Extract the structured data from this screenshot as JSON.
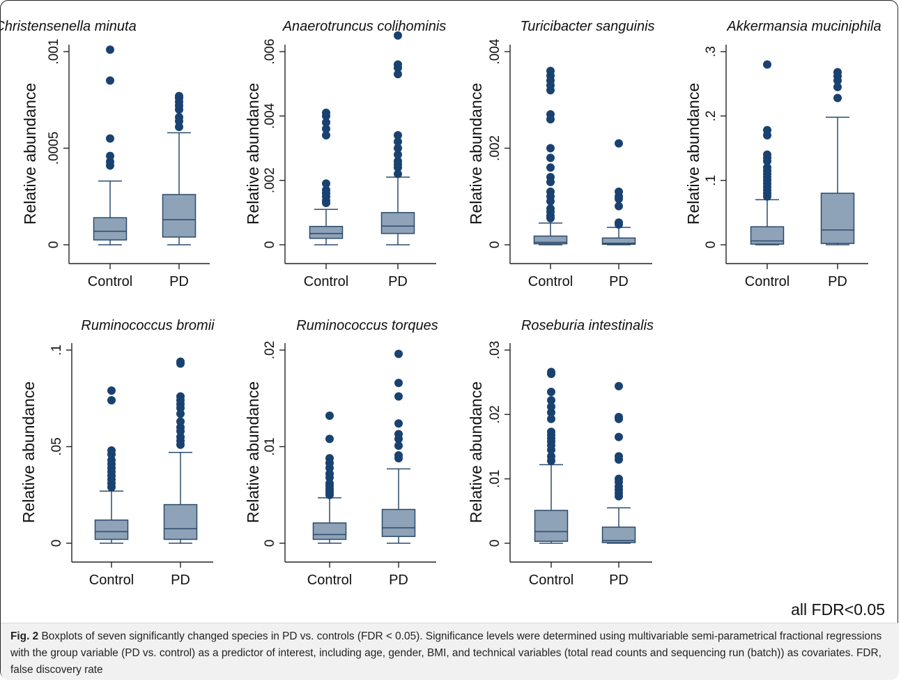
{
  "figure": {
    "note": "all FDR<0.05",
    "caption_label": "Fig. 2",
    "caption_text": " Boxplots of seven significantly changed species in PD vs. controls (FDR < 0.05). Significance levels were determined using multivariable semi-parametrical fractional regressions with the group variable (PD vs. control) as a predictor of interest, including age, gender, BMI, and technical variables (total read counts and sequencing run (batch)) as covariates. FDR, false discovery rate"
  },
  "colors": {
    "box_fill": "#8ea2b8",
    "box_stroke": "#2c4a6b",
    "outlier": "#1a4270",
    "axis": "#222222"
  },
  "chart_data": [
    {
      "type": "box",
      "title": "Christensenella minuta",
      "ylabel": "Relative abundance",
      "ylim": [
        0,
        0.001
      ],
      "yticks": [
        0,
        0.0005,
        0.001
      ],
      "ytick_labels": [
        "0",
        ".0005",
        ".001"
      ],
      "categories": [
        "Control",
        "PD"
      ],
      "boxes": [
        {
          "min": 0,
          "q1": 2.5e-05,
          "median": 7e-05,
          "q3": 0.00014,
          "max": 0.00033,
          "outliers": [
            0.00041,
            0.00043,
            0.00046,
            0.00055,
            0.00085,
            0.00101
          ]
        },
        {
          "min": 0,
          "q1": 4e-05,
          "median": 0.00013,
          "q3": 0.00026,
          "max": 0.00058,
          "outliers": [
            0.00061,
            0.00064,
            0.00066,
            0.0007,
            0.00072,
            0.00074,
            0.00076,
            0.00077
          ]
        }
      ]
    },
    {
      "type": "box",
      "title": "Anaerotruncus colihominis",
      "ylabel": "Relative abundance",
      "ylim": [
        0,
        0.0065
      ],
      "yticks": [
        0,
        0.002,
        0.004,
        0.006
      ],
      "ytick_labels": [
        "0",
        ".002",
        ".004",
        ".006"
      ],
      "categories": [
        "Control",
        "PD"
      ],
      "boxes": [
        {
          "min": 0,
          "q1": 0.0002,
          "median": 0.00035,
          "q3": 0.00057,
          "max": 0.0011,
          "outliers": [
            0.0013,
            0.00137,
            0.0015,
            0.0016,
            0.0017,
            0.0019,
            0.0034,
            0.0036,
            0.0038,
            0.004,
            0.0041
          ]
        },
        {
          "min": 0,
          "q1": 0.00035,
          "median": 0.00058,
          "q3": 0.001,
          "max": 0.0021,
          "outliers": [
            0.0022,
            0.0024,
            0.0025,
            0.0026,
            0.0028,
            0.003,
            0.0032,
            0.0034,
            0.0053,
            0.0055,
            0.0056,
            0.0065
          ]
        }
      ]
    },
    {
      "type": "box",
      "title": "Turicibacter sanguinis",
      "ylabel": "Relative abundance",
      "ylim": [
        0,
        0.004
      ],
      "yticks": [
        0,
        0.002,
        0.004
      ],
      "ytick_labels": [
        "0",
        ".002",
        ".004"
      ],
      "categories": [
        "Control",
        "PD"
      ],
      "boxes": [
        {
          "min": 0,
          "q1": 2e-05,
          "median": 5e-05,
          "q3": 0.00018,
          "max": 0.00045,
          "outliers": [
            0.00055,
            0.0006,
            0.00068,
            0.00075,
            0.0009,
            0.001,
            0.0011,
            0.0013,
            0.0014,
            0.0016,
            0.0018,
            0.002,
            0.0026,
            0.0027,
            0.0032,
            0.0033,
            0.0034,
            0.0035,
            0.0036
          ]
        },
        {
          "min": 0,
          "q1": 1e-05,
          "median": 3e-05,
          "q3": 0.00014,
          "max": 0.00036,
          "outliers": [
            0.00042,
            0.00046,
            0.0008,
            0.00095,
            0.001,
            0.0011,
            0.0021
          ]
        }
      ]
    },
    {
      "type": "box",
      "title": "Akkermansia muciniphila",
      "ylabel": "Relative abundance",
      "ylim": [
        0,
        0.3
      ],
      "yticks": [
        0,
        0.1,
        0.2,
        0.3
      ],
      "ytick_labels": [
        "0",
        ".1",
        ".2",
        ".3"
      ],
      "categories": [
        "Control",
        "PD"
      ],
      "boxes": [
        {
          "min": 0,
          "q1": 0.001,
          "median": 0.006,
          "q3": 0.028,
          "max": 0.07,
          "outliers": [
            0.075,
            0.08,
            0.085,
            0.09,
            0.095,
            0.1,
            0.105,
            0.11,
            0.115,
            0.12,
            0.13,
            0.135,
            0.14,
            0.17,
            0.178,
            0.28
          ]
        },
        {
          "min": 0,
          "q1": 0.002,
          "median": 0.023,
          "q3": 0.08,
          "max": 0.198,
          "outliers": [
            0.228,
            0.245,
            0.255,
            0.262,
            0.268
          ]
        }
      ]
    },
    {
      "type": "box",
      "title": "Ruminococcus bromii",
      "ylabel": "Relative abundance",
      "ylim": [
        0,
        0.1
      ],
      "yticks": [
        0,
        0.05,
        0.1
      ],
      "ytick_labels": [
        "0",
        ".05",
        ".1"
      ],
      "categories": [
        "Control",
        "PD"
      ],
      "boxes": [
        {
          "min": 0,
          "q1": 0.002,
          "median": 0.006,
          "q3": 0.012,
          "max": 0.027,
          "outliers": [
            0.029,
            0.031,
            0.033,
            0.035,
            0.037,
            0.039,
            0.041,
            0.043,
            0.046,
            0.048,
            0.074,
            0.079
          ]
        },
        {
          "min": 0,
          "q1": 0.002,
          "median": 0.0075,
          "q3": 0.02,
          "max": 0.047,
          "outliers": [
            0.051,
            0.053,
            0.055,
            0.058,
            0.06,
            0.063,
            0.067,
            0.07,
            0.072,
            0.074,
            0.076,
            0.093,
            0.094
          ]
        }
      ]
    },
    {
      "type": "box",
      "title": "Ruminococcus torques",
      "ylabel": "Relative abundance",
      "ylim": [
        0,
        0.02
      ],
      "yticks": [
        0,
        0.01,
        0.02
      ],
      "ytick_labels": [
        "0",
        ".01",
        ".02"
      ],
      "categories": [
        "Control",
        "PD"
      ],
      "boxes": [
        {
          "min": 0,
          "q1": 0.0004,
          "median": 0.0009,
          "q3": 0.0021,
          "max": 0.0047,
          "outliers": [
            0.005,
            0.0053,
            0.0056,
            0.0059,
            0.0062,
            0.0068,
            0.0072,
            0.0078,
            0.0083,
            0.0088,
            0.0108,
            0.0132
          ]
        },
        {
          "min": 0,
          "q1": 0.0007,
          "median": 0.0016,
          "q3": 0.0035,
          "max": 0.0077,
          "outliers": [
            0.0088,
            0.0091,
            0.0101,
            0.0108,
            0.0113,
            0.0124,
            0.0152,
            0.0166,
            0.0196
          ]
        }
      ]
    },
    {
      "type": "box",
      "title": "Roseburia intestinalis",
      "ylabel": "Relative abundance",
      "ylim": [
        0,
        0.03
      ],
      "yticks": [
        0,
        0.01,
        0.02,
        0.03
      ],
      "ytick_labels": [
        "0",
        ".01",
        ".02",
        ".03"
      ],
      "categories": [
        "Control",
        "PD"
      ],
      "boxes": [
        {
          "min": 0,
          "q1": 0.0003,
          "median": 0.0018,
          "q3": 0.0051,
          "max": 0.0122,
          "outliers": [
            0.0128,
            0.0135,
            0.0145,
            0.0152,
            0.0158,
            0.0163,
            0.0168,
            0.0173,
            0.0193,
            0.0203,
            0.0212,
            0.0222,
            0.0235,
            0.0263,
            0.0266
          ]
        },
        {
          "min": 0,
          "q1": 0.0001,
          "median": 0.0004,
          "q3": 0.0025,
          "max": 0.0055,
          "outliers": [
            0.0073,
            0.0078,
            0.0083,
            0.0088,
            0.0095,
            0.01,
            0.013,
            0.0135,
            0.0165,
            0.0193,
            0.0196,
            0.0244
          ]
        }
      ]
    }
  ]
}
